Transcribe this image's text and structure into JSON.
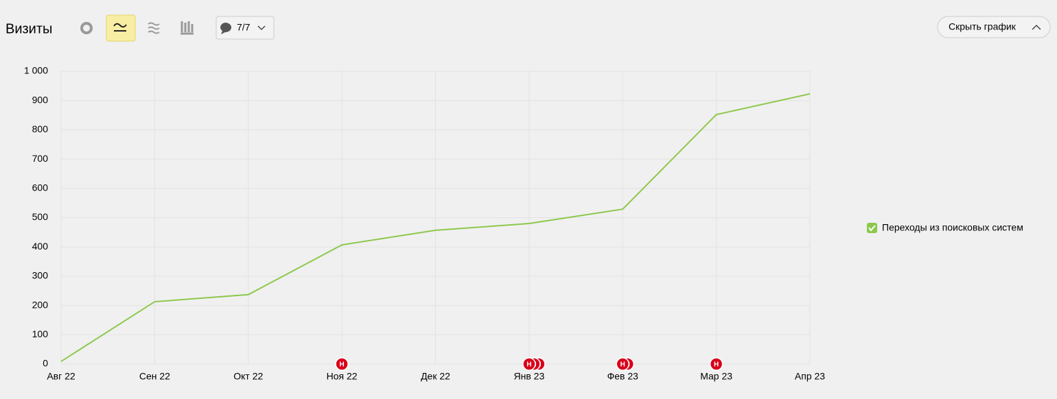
{
  "header": {
    "title": "Визиты",
    "notes_filter": "7/7",
    "hide_button": "Скрыть график"
  },
  "chart_data": {
    "type": "line",
    "categories": [
      "Авг 22",
      "Сен 22",
      "Окт 22",
      "Ноя 22",
      "Дек 22",
      "Янв 23",
      "Фев 23",
      "Мар 23",
      "Апр 23"
    ],
    "series": [
      {
        "name": "Переходы из поисковых систем",
        "color": "#8cc84b",
        "values": [
          9,
          213,
          237,
          407,
          457,
          480,
          529,
          852,
          923
        ]
      }
    ],
    "ylim": [
      0,
      1000
    ],
    "yticks": [
      0,
      100,
      200,
      300,
      400,
      500,
      600,
      700,
      800,
      900,
      {
        "value": 1000,
        "label": "1 000"
      }
    ],
    "grid": true,
    "annotations": [
      {
        "x": "Ноя 22",
        "label": "Н"
      },
      {
        "x": "Янв 23",
        "label": "Н"
      },
      {
        "x": "Янв 23",
        "label": "Н"
      },
      {
        "x": "Янв 23",
        "label": "Н"
      },
      {
        "x": "Фев 23",
        "label": "Н"
      },
      {
        "x": "Фев 23",
        "label": "Н"
      },
      {
        "x": "Мар 23",
        "label": "Н"
      }
    ]
  }
}
